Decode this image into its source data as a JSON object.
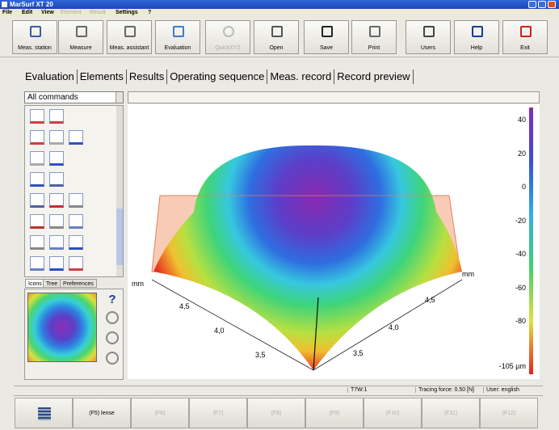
{
  "window": {
    "title": "MarSurf XT 20"
  },
  "menu": [
    "File",
    "Edit",
    "View",
    "Element",
    "Result",
    "Settings",
    "?"
  ],
  "toolbar": [
    "Meas. station",
    "Measure",
    "Meas. assistant",
    "Evaluation",
    "QuickXYZ",
    "Open",
    "Save",
    "Print",
    "Users",
    "Help",
    "Exit"
  ],
  "tabs": [
    "Evaluation",
    "Elements",
    "Results",
    "Operating sequence",
    "Meas. record",
    "Record preview"
  ],
  "command_filter": "All commands",
  "panel_tabs": [
    "Icons",
    "Tree",
    "Preferences"
  ],
  "plot": {
    "left_unit": "mm",
    "right_unit": "mm",
    "left_axis_labels": [
      "4,5",
      "4,0",
      "3,5"
    ],
    "right_axis_labels": [
      "4,5",
      "4,0",
      "3,5"
    ],
    "colorbar_labels": [
      "40",
      "20",
      "0",
      "-20",
      "-40",
      "-60",
      "-80",
      "-105 µm"
    ]
  },
  "status": [
    "T7W:1",
    "Tracing force: 0.50 [N]",
    "User: english"
  ],
  "function_keys": [
    "(F5) lense",
    "(F6)",
    "(F7)",
    "(F8)",
    "(F9)",
    "(F10)",
    "(F11)",
    "(F12)"
  ]
}
